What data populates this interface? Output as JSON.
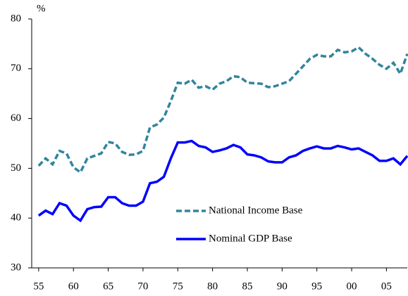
{
  "chart_data": {
    "type": "line",
    "y_label": "%",
    "x": [
      1955,
      1956,
      1957,
      1958,
      1959,
      1960,
      1961,
      1962,
      1963,
      1964,
      1965,
      1966,
      1967,
      1968,
      1969,
      1970,
      1971,
      1972,
      1973,
      1974,
      1975,
      1976,
      1977,
      1978,
      1979,
      1980,
      1981,
      1982,
      1983,
      1984,
      1985,
      1986,
      1987,
      1988,
      1989,
      1990,
      1991,
      1992,
      1993,
      1994,
      1995,
      1996,
      1997,
      1998,
      1999,
      2000,
      2001,
      2002,
      2003,
      2004,
      2005,
      2006,
      2007,
      2008
    ],
    "series": [
      {
        "name": "National Income Base",
        "color": "#31859c",
        "dashed": true,
        "values": [
          50.5,
          52,
          50.8,
          53.5,
          53,
          50.2,
          49.2,
          52,
          52.5,
          53,
          55.3,
          55,
          53.3,
          52.7,
          52.8,
          53.5,
          58.2,
          58.8,
          60.2,
          63.5,
          67.2,
          67,
          67.8,
          66.2,
          66.5,
          65.8,
          67,
          67.5,
          68.5,
          68.3,
          67.2,
          67.1,
          67,
          66.3,
          66.5,
          67,
          67.5,
          69,
          70.5,
          72,
          72.8,
          72.5,
          72.5,
          73.8,
          73.3,
          73.5,
          74.3,
          73,
          72,
          70.8,
          70,
          71.2,
          69,
          73
        ]
      },
      {
        "name": "Nominal GDP Base",
        "color": "#0000ff",
        "dashed": false,
        "values": [
          40.5,
          41.5,
          40.8,
          43,
          42.5,
          40.5,
          39.5,
          41.8,
          42.2,
          42.3,
          44.2,
          44.2,
          43,
          42.5,
          42.5,
          43.3,
          47,
          47.3,
          48.3,
          52,
          55.2,
          55.2,
          55.5,
          54.5,
          54.2,
          53.3,
          53.6,
          54,
          54.7,
          54.2,
          52.8,
          52.6,
          52.2,
          51.4,
          51.2,
          51.2,
          52.2,
          52.6,
          53.5,
          54,
          54.4,
          54,
          54,
          54.5,
          54.2,
          53.8,
          54,
          53.3,
          52.6,
          51.5,
          51.5,
          52,
          50.8,
          52.5
        ]
      }
    ],
    "xlim": [
      1954,
      2008
    ],
    "xticks": [
      {
        "value": 1955,
        "label": "55"
      },
      {
        "value": 1960,
        "label": "60"
      },
      {
        "value": 1965,
        "label": "65"
      },
      {
        "value": 1970,
        "label": "70"
      },
      {
        "value": 1975,
        "label": "75"
      },
      {
        "value": 1980,
        "label": "80"
      },
      {
        "value": 1985,
        "label": "85"
      },
      {
        "value": 1990,
        "label": "90"
      },
      {
        "value": 1995,
        "label": "95"
      },
      {
        "value": 2000,
        "label": "00"
      },
      {
        "value": 2005,
        "label": "05"
      }
    ],
    "ylim": [
      30,
      80
    ],
    "yticks": [
      30,
      40,
      50,
      60,
      70,
      80
    ],
    "grid": false,
    "legend": "center"
  }
}
